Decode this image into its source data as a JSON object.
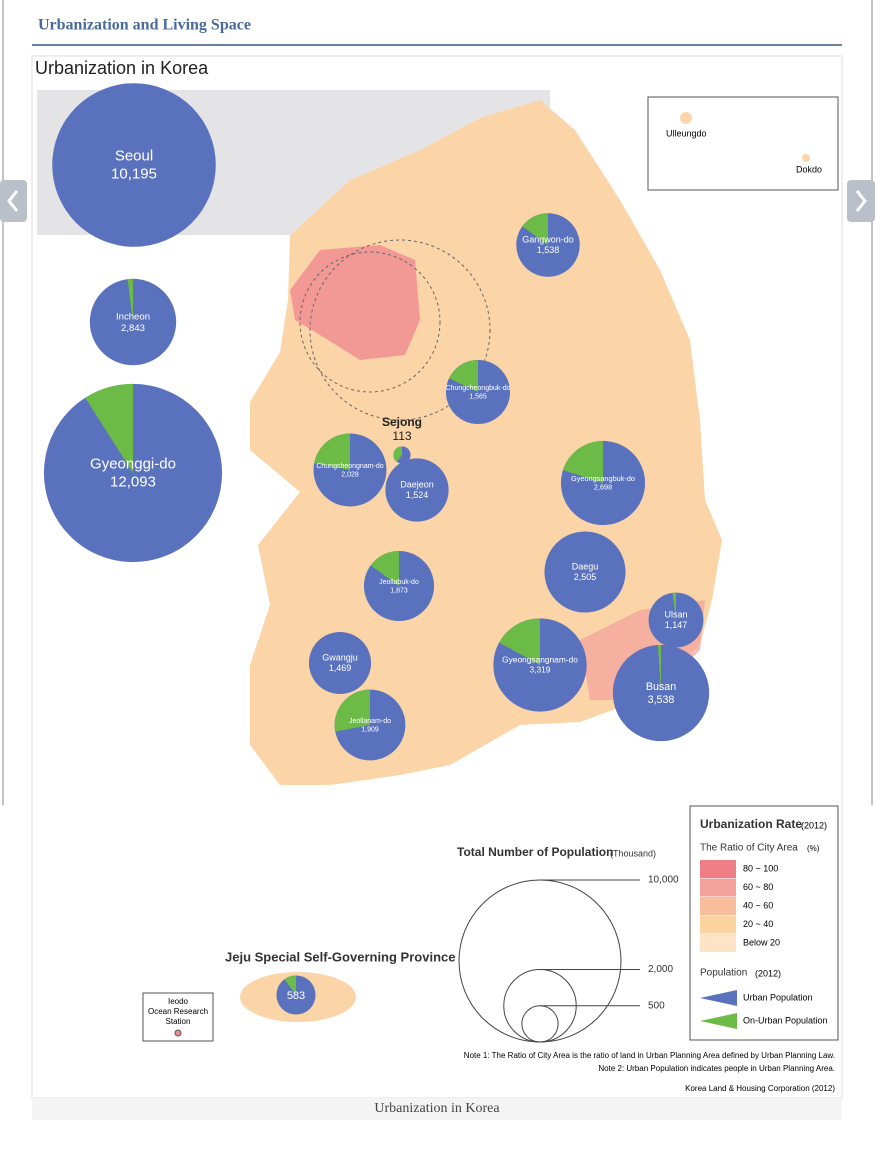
{
  "header": {
    "title": "Urbanization and Living Space"
  },
  "map": {
    "title": "Urbanization in Korea",
    "regions": [
      {
        "name": "Seoul",
        "population": 10195,
        "population_label": "10,195",
        "urban_share": 100
      },
      {
        "name": "Incheon",
        "population": 2843,
        "population_label": "2,843",
        "urban_share": 98
      },
      {
        "name": "Gyeonggi-do",
        "population": 12093,
        "population_label": "12,093",
        "urban_share": 91
      },
      {
        "name": "Gangwon-do",
        "population": 1538,
        "population_label": "1,538",
        "urban_share": 85
      },
      {
        "name": "Chungcheongbuk-do",
        "population": 1565,
        "population_label": "1,565",
        "urban_share": 82
      },
      {
        "name": "Sejong",
        "population": 113,
        "population_label": "113",
        "urban_share": 60
      },
      {
        "name": "Chungcheongnam-do",
        "population": 2028,
        "population_label": "2,028",
        "urban_share": 78
      },
      {
        "name": "Daejeon",
        "population": 1524,
        "population_label": "1,524",
        "urban_share": 100
      },
      {
        "name": "Gyeongsangbuk-do",
        "population": 2698,
        "population_label": "2,698",
        "urban_share": 80
      },
      {
        "name": "Jeollabuk-do",
        "population": 1873,
        "population_label": "1,873",
        "urban_share": 85
      },
      {
        "name": "Daegu",
        "population": 2505,
        "population_label": "2,505",
        "urban_share": 100
      },
      {
        "name": "Ulsan",
        "population": 1147,
        "population_label": "1,147",
        "urban_share": 98
      },
      {
        "name": "Gwangju",
        "population": 1469,
        "population_label": "1,469",
        "urban_share": 100
      },
      {
        "name": "Gyeongsangnam-do",
        "population": 3319,
        "population_label": "3,319",
        "urban_share": 83
      },
      {
        "name": "Busan",
        "population": 3538,
        "population_label": "3,538",
        "urban_share": 99
      },
      {
        "name": "Jeollanam-do",
        "population": 1909,
        "population_label": "1,909",
        "urban_share": 72
      },
      {
        "name": "Jeju",
        "population": 583,
        "population_label": "583",
        "urban_share": 90
      }
    ],
    "islands": [
      "Ulleungdo",
      "Dokdo"
    ],
    "jeju_title": "Jeju Special Self-Governing Province",
    "ieodo": [
      "Ieodo",
      "Ocean Research",
      "Station"
    ],
    "scale": {
      "title": "Total Number of Population",
      "unit": "(Thousand)",
      "circles": [
        {
          "value": 10000,
          "label": "10,000"
        },
        {
          "value": 2000,
          "label": "2,000"
        },
        {
          "value": 500,
          "label": "500"
        }
      ]
    },
    "legend": {
      "title": "Urbanization Rate",
      "year": "(2012)",
      "subtitle": "The Ratio of City Area",
      "unit": "(%)",
      "classes": [
        {
          "label": "80 ~ 100",
          "color": "#ef7f86"
        },
        {
          "label": "60 ~ 80",
          "color": "#f4a09c"
        },
        {
          "label": "40 ~ 60",
          "color": "#f8bd9a"
        },
        {
          "label": "20 ~ 40",
          "color": "#fbd39f"
        },
        {
          "label": "Below 20",
          "color": "#fde4c6"
        }
      ],
      "population_title": "Population",
      "population_year": "(2012)",
      "urban": {
        "label": "Urban Population",
        "color": "#5a72be"
      },
      "non_urban": {
        "label": "On-Urban Population",
        "color": "#6cbb46"
      }
    },
    "notes": [
      "Note 1: The Ratio of City Area is the ratio of land in Urban Planning Area defined by Urban Planning Law.",
      "Note 2: Urban Population indicates people in Urban Planning Area."
    ],
    "source": "Korea Land & Housing Corporation (2012)"
  },
  "caption": "Urbanization in Korea"
}
